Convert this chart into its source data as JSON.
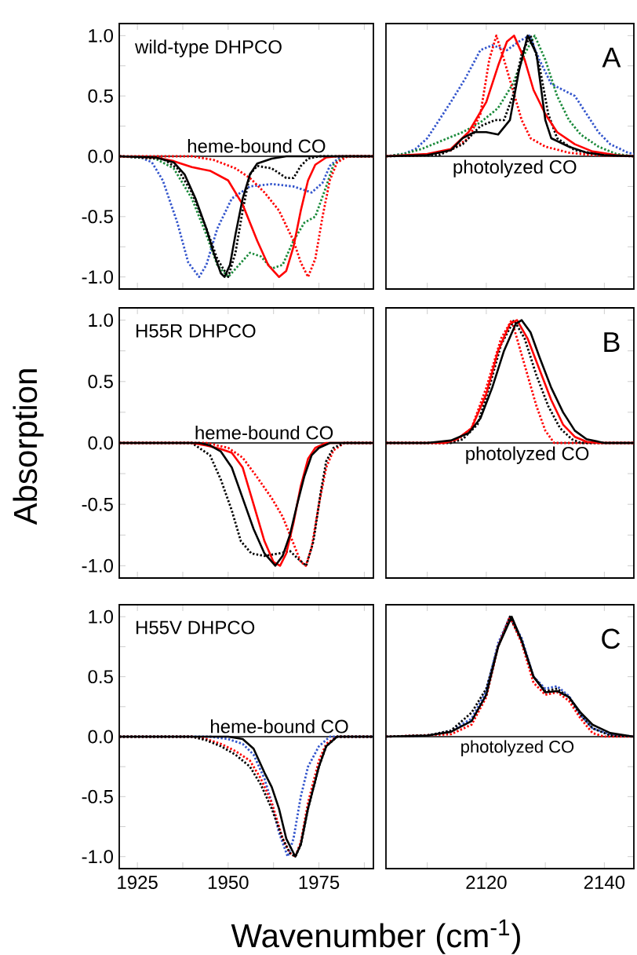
{
  "chart_data": [
    {
      "type": "line",
      "title": "wild-type DHPCO",
      "ylabel": "Absorption",
      "xlim": [
        1920,
        1990
      ],
      "ylim": [
        -1.1,
        1.1
      ],
      "tick_labels": "y",
      "xticks": [
        {
          "value": 1925,
          "label": null
        },
        {
          "value": 1937.5,
          "label": null
        },
        {
          "value": 1950,
          "label": null
        },
        {
          "value": 1962.5,
          "label": null
        },
        {
          "value": 1975,
          "label": null
        },
        {
          "value": 1987.5,
          "label": null
        }
      ],
      "yticks": [
        {
          "value": -1,
          "label": "-1.0"
        },
        {
          "value": -0.75,
          "label": null
        },
        {
          "value": -0.5,
          "label": "-0.5"
        },
        {
          "value": -0.25,
          "label": null
        },
        {
          "value": 0,
          "label": "0.0"
        },
        {
          "value": 0.25,
          "label": null
        },
        {
          "value": 0.5,
          "label": "0.5"
        },
        {
          "value": 0.75,
          "label": null
        },
        {
          "value": 1,
          "label": "1.0"
        }
      ],
      "ref_lines": [
        {
          "axis": "y",
          "value": 0,
          "color": "#000000"
        }
      ],
      "annotations": [
        "heme-bound CO"
      ],
      "series": [
        {
          "color": "#3355cc",
          "line_style": "dotted",
          "x": [
            1920,
            1926,
            1929,
            1932,
            1936,
            1939,
            1942,
            1944,
            1947,
            1951,
            1956,
            1962,
            1968,
            1973,
            1976,
            1978,
            1981,
            1990
          ],
          "values": [
            0,
            -0.01,
            -0.05,
            -0.2,
            -0.55,
            -0.88,
            -1.0,
            -0.9,
            -0.6,
            -0.35,
            -0.25,
            -0.23,
            -0.25,
            -0.3,
            -0.22,
            -0.08,
            0,
            0
          ]
        },
        {
          "color": "#1a8a3a",
          "line_style": "dotted",
          "x": [
            1920,
            1930,
            1935,
            1940,
            1944,
            1947,
            1950,
            1953,
            1956,
            1959,
            1962,
            1965,
            1968,
            1971,
            1974,
            1977,
            1979,
            1982,
            1990
          ],
          "values": [
            0,
            -0.02,
            -0.1,
            -0.35,
            -0.65,
            -0.9,
            -1.0,
            -0.9,
            -0.8,
            -0.83,
            -0.93,
            -0.9,
            -0.7,
            -0.55,
            -0.5,
            -0.25,
            -0.07,
            0,
            0
          ]
        },
        {
          "color": "#ff0000",
          "line_style": "dotted",
          "x": [
            1920,
            1940,
            1946,
            1952,
            1956,
            1960,
            1964,
            1968,
            1970,
            1972,
            1974,
            1976,
            1978,
            1980,
            1983,
            1990
          ],
          "values": [
            0,
            0,
            -0.03,
            -0.1,
            -0.18,
            -0.3,
            -0.45,
            -0.7,
            -0.88,
            -1.0,
            -0.85,
            -0.5,
            -0.2,
            -0.05,
            0,
            0
          ]
        },
        {
          "color": "#000000",
          "line_style": "dotted",
          "x": [
            1920,
            1932,
            1936,
            1940,
            1944,
            1947,
            1950,
            1952,
            1954,
            1956,
            1958,
            1962,
            1966,
            1968,
            1970,
            1972,
            1975,
            1990
          ],
          "values": [
            0,
            -0.02,
            -0.1,
            -0.3,
            -0.6,
            -0.85,
            -1.0,
            -0.8,
            -0.45,
            -0.15,
            -0.08,
            -0.1,
            -0.18,
            -0.18,
            -0.08,
            -0.02,
            0,
            0
          ]
        },
        {
          "color": "#ff0000",
          "line_style": "solid",
          "x": [
            1920,
            1930,
            1935,
            1940,
            1945,
            1950,
            1954,
            1958,
            1961,
            1964,
            1966,
            1968,
            1970,
            1972,
            1974,
            1977,
            1980,
            1990
          ],
          "values": [
            0,
            -0.01,
            -0.04,
            -0.09,
            -0.12,
            -0.2,
            -0.4,
            -0.7,
            -0.9,
            -1.0,
            -0.95,
            -0.75,
            -0.45,
            -0.2,
            -0.07,
            -0.01,
            0,
            0
          ]
        },
        {
          "color": "#000000",
          "line_style": "solid",
          "x": [
            1920,
            1930,
            1935,
            1938,
            1941,
            1944,
            1946,
            1948,
            1949,
            1950.5,
            1952,
            1954,
            1956,
            1958,
            1962,
            1966,
            1990
          ],
          "values": [
            0,
            -0.01,
            -0.05,
            -0.15,
            -0.35,
            -0.6,
            -0.8,
            -0.97,
            -1.0,
            -0.9,
            -0.65,
            -0.35,
            -0.15,
            -0.06,
            -0.02,
            0,
            0
          ]
        }
      ]
    },
    {
      "type": "line",
      "title": "A",
      "xlim": [
        2103,
        2145
      ],
      "ylim": [
        -1.1,
        1.1
      ],
      "tick_labels": false,
      "xticks": [
        {
          "value": 2110,
          "label": null
        },
        {
          "value": 2120,
          "label": null
        },
        {
          "value": 2130,
          "label": null
        },
        {
          "value": 2140,
          "label": null
        }
      ],
      "yticks": [
        {
          "value": -1,
          "label": null
        },
        {
          "value": -0.75,
          "label": null
        },
        {
          "value": -0.5,
          "label": null
        },
        {
          "value": -0.25,
          "label": null
        },
        {
          "value": 0,
          "label": null
        },
        {
          "value": 0.25,
          "label": null
        },
        {
          "value": 0.5,
          "label": null
        },
        {
          "value": 0.75,
          "label": null
        },
        {
          "value": 1,
          "label": null
        }
      ],
      "ref_lines": [
        {
          "axis": "y",
          "value": 0,
          "color": "#000000"
        }
      ],
      "annotations": [
        "photolyzed CO"
      ],
      "series": [
        {
          "color": "#3355cc",
          "line_style": "dotted",
          "x": [
            2103,
            2106,
            2108,
            2110,
            2112,
            2114,
            2116.5,
            2119,
            2121,
            2123.5,
            2125.5,
            2127.3,
            2129,
            2131,
            2133,
            2135,
            2137,
            2139,
            2141,
            2144,
            2145
          ],
          "values": [
            0,
            0.02,
            0.06,
            0.15,
            0.3,
            0.45,
            0.65,
            0.88,
            0.92,
            0.88,
            0.95,
            1.0,
            0.8,
            0.6,
            0.55,
            0.5,
            0.35,
            0.2,
            0.1,
            0.03,
            0.02
          ]
        },
        {
          "color": "#1a8a3a",
          "line_style": "dotted",
          "x": [
            2103,
            2106,
            2109,
            2112,
            2116,
            2119,
            2122,
            2124.5,
            2126.5,
            2128.2,
            2130,
            2132,
            2134,
            2136,
            2139,
            2142,
            2145
          ],
          "values": [
            0,
            0.02,
            0.06,
            0.12,
            0.2,
            0.28,
            0.4,
            0.6,
            0.85,
            1.0,
            0.8,
            0.5,
            0.3,
            0.18,
            0.08,
            0.02,
            0
          ]
        },
        {
          "color": "#ff0000",
          "line_style": "dotted",
          "x": [
            2103,
            2110,
            2114,
            2117,
            2119,
            2120.5,
            2121.7,
            2123,
            2124.5,
            2126,
            2127.5,
            2130,
            2134,
            2138,
            2145
          ],
          "values": [
            0,
            0.01,
            0.05,
            0.15,
            0.35,
            0.8,
            1.0,
            0.8,
            0.55,
            0.3,
            0.15,
            0.08,
            0.03,
            0.01,
            0
          ]
        },
        {
          "color": "#000000",
          "line_style": "dotted",
          "x": [
            2103,
            2112,
            2116,
            2119,
            2121.5,
            2123,
            2124.5,
            2126,
            2127.5,
            2129,
            2130.5,
            2132,
            2135,
            2140,
            2145
          ],
          "values": [
            0,
            0.01,
            0.1,
            0.25,
            0.3,
            0.3,
            0.5,
            0.85,
            1.0,
            0.75,
            0.35,
            0.15,
            0.05,
            0.01,
            0
          ]
        },
        {
          "color": "#ff0000",
          "line_style": "solid",
          "x": [
            2103,
            2110,
            2114,
            2117,
            2120,
            2122,
            2123.5,
            2124.7,
            2126.5,
            2128,
            2130,
            2132,
            2135,
            2138,
            2142,
            2145
          ],
          "values": [
            0,
            0.02,
            0.06,
            0.2,
            0.45,
            0.75,
            0.95,
            1.0,
            0.8,
            0.55,
            0.35,
            0.2,
            0.1,
            0.04,
            0.01,
            0
          ]
        },
        {
          "color": "#000000",
          "line_style": "solid",
          "x": [
            2103,
            2110,
            2114,
            2116,
            2118,
            2120,
            2122,
            2124,
            2125.5,
            2127,
            2128.5,
            2130,
            2131,
            2134,
            2137,
            2140,
            2145
          ],
          "values": [
            0,
            0.01,
            0.05,
            0.15,
            0.2,
            0.2,
            0.18,
            0.3,
            0.7,
            1.0,
            0.85,
            0.3,
            0.15,
            0.08,
            0.03,
            0.01,
            0
          ]
        }
      ]
    },
    {
      "type": "line",
      "title": "H55R DHPCO",
      "xlim": [
        1920,
        1990
      ],
      "ylim": [
        -1.1,
        1.1
      ],
      "tick_labels": "y",
      "xticks": [
        {
          "value": 1925,
          "label": null
        },
        {
          "value": 1937.5,
          "label": null
        },
        {
          "value": 1950,
          "label": null
        },
        {
          "value": 1962.5,
          "label": null
        },
        {
          "value": 1975,
          "label": null
        },
        {
          "value": 1987.5,
          "label": null
        }
      ],
      "yticks": [
        {
          "value": -1,
          "label": "-1.0"
        },
        {
          "value": -0.75,
          "label": null
        },
        {
          "value": -0.5,
          "label": "-0.5"
        },
        {
          "value": -0.25,
          "label": null
        },
        {
          "value": 0,
          "label": "0.0"
        },
        {
          "value": 0.25,
          "label": null
        },
        {
          "value": 0.5,
          "label": "0.5"
        },
        {
          "value": 0.75,
          "label": null
        },
        {
          "value": 1,
          "label": "1.0"
        }
      ],
      "ref_lines": [
        {
          "axis": "y",
          "value": 0,
          "color": "#000000"
        }
      ],
      "annotations": [
        "heme-bound CO"
      ],
      "series": [
        {
          "color": "#ff0000",
          "line_style": "dotted",
          "x": [
            1920,
            1944,
            1950,
            1954,
            1958,
            1962,
            1965,
            1968,
            1970,
            1971.4,
            1973,
            1975,
            1977,
            1979,
            1982,
            1990
          ],
          "values": [
            0,
            0,
            -0.04,
            -0.12,
            -0.28,
            -0.45,
            -0.6,
            -0.82,
            -0.97,
            -1.0,
            -0.85,
            -0.5,
            -0.2,
            -0.06,
            0,
            0
          ]
        },
        {
          "color": "#000000",
          "line_style": "dotted",
          "x": [
            1920,
            1940,
            1945,
            1948,
            1951,
            1953.5,
            1956.4,
            1960,
            1964,
            1967,
            1969.5,
            1971.5,
            1973.5,
            1975.5,
            1977,
            1979,
            1982,
            1990
          ],
          "values": [
            0,
            0,
            -0.1,
            -0.3,
            -0.55,
            -0.8,
            -0.9,
            -0.92,
            -0.9,
            -0.88,
            -0.95,
            -1.0,
            -0.8,
            -0.4,
            -0.15,
            -0.04,
            0,
            0
          ]
        },
        {
          "color": "#ff0000",
          "line_style": "solid",
          "x": [
            1920,
            1940,
            1944,
            1948,
            1951,
            1954,
            1957,
            1960,
            1962.5,
            1964.3,
            1966,
            1968,
            1970,
            1972,
            1974,
            1977,
            1990
          ],
          "values": [
            0,
            0,
            -0.02,
            -0.05,
            -0.08,
            -0.2,
            -0.5,
            -0.8,
            -0.97,
            -1.0,
            -0.9,
            -0.65,
            -0.35,
            -0.13,
            -0.04,
            0,
            0
          ]
        },
        {
          "color": "#000000",
          "line_style": "solid",
          "x": [
            1920,
            1942,
            1945,
            1948,
            1951,
            1954,
            1957,
            1960,
            1963,
            1965,
            1967,
            1969,
            1971,
            1973,
            1975,
            1978,
            1990
          ],
          "values": [
            0,
            0,
            -0.02,
            -0.07,
            -0.2,
            -0.45,
            -0.7,
            -0.9,
            -1.0,
            -0.92,
            -0.75,
            -0.5,
            -0.27,
            -0.1,
            -0.04,
            0,
            0
          ]
        }
      ]
    },
    {
      "type": "line",
      "title": "B",
      "xlim": [
        2103,
        2145
      ],
      "ylim": [
        -1.1,
        1.1
      ],
      "tick_labels": false,
      "xticks": [
        {
          "value": 2110,
          "label": null
        },
        {
          "value": 2120,
          "label": null
        },
        {
          "value": 2130,
          "label": null
        },
        {
          "value": 2140,
          "label": null
        }
      ],
      "yticks": [
        {
          "value": -1,
          "label": null
        },
        {
          "value": -0.75,
          "label": null
        },
        {
          "value": -0.5,
          "label": null
        },
        {
          "value": -0.25,
          "label": null
        },
        {
          "value": 0,
          "label": null
        },
        {
          "value": 0.25,
          "label": null
        },
        {
          "value": 0.5,
          "label": null
        },
        {
          "value": 0.75,
          "label": null
        },
        {
          "value": 1,
          "label": null
        }
      ],
      "ref_lines": [
        {
          "axis": "y",
          "value": 0,
          "color": "#000000"
        }
      ],
      "annotations": [
        "photolyzed CO"
      ],
      "series": [
        {
          "color": "#ff0000",
          "line_style": "dotted",
          "x": [
            2103,
            2113,
            2115,
            2117.5,
            2120,
            2122.5,
            2124.3,
            2125.5,
            2127,
            2128.5,
            2130,
            2131.5,
            2145
          ],
          "values": [
            0,
            0,
            0.02,
            0.12,
            0.45,
            0.85,
            1.0,
            0.8,
            0.55,
            0.3,
            0.1,
            0,
            0
          ]
        },
        {
          "color": "#000000",
          "line_style": "dotted",
          "x": [
            2103,
            2114,
            2116,
            2118.5,
            2120.5,
            2122.5,
            2124.7,
            2126.5,
            2128.5,
            2130.5,
            2132.5,
            2134.5,
            2136,
            2145
          ],
          "values": [
            0,
            0,
            0.03,
            0.15,
            0.45,
            0.8,
            1.0,
            0.85,
            0.55,
            0.3,
            0.12,
            0.03,
            0,
            0
          ]
        },
        {
          "color": "#ff0000",
          "line_style": "solid",
          "x": [
            2103,
            2113,
            2115,
            2117.5,
            2120,
            2122,
            2124,
            2125.2,
            2127,
            2129,
            2131,
            2133,
            2135,
            2137,
            2139,
            2145
          ],
          "values": [
            0,
            0,
            0.03,
            0.12,
            0.4,
            0.75,
            0.97,
            1.0,
            0.85,
            0.6,
            0.35,
            0.15,
            0.05,
            0.01,
            0,
            0
          ]
        },
        {
          "color": "#000000",
          "line_style": "solid",
          "x": [
            2103,
            2110,
            2114,
            2117,
            2119,
            2121,
            2123,
            2125,
            2126,
            2127.5,
            2129,
            2131,
            2133,
            2135,
            2137,
            2140,
            2145
          ],
          "values": [
            0,
            0,
            0.02,
            0.08,
            0.2,
            0.45,
            0.75,
            0.97,
            1.0,
            0.9,
            0.7,
            0.45,
            0.25,
            0.1,
            0.03,
            0,
            0
          ]
        }
      ]
    },
    {
      "type": "line",
      "title": "H55V DHPCO",
      "xlabel": "Wavenumber (cm$^{-1}$)",
      "xlim": [
        1920,
        1990
      ],
      "ylim": [
        -1.1,
        1.1
      ],
      "xticks": [
        1925,
        {
          "value": 1937.5,
          "label": null
        },
        1950,
        {
          "value": 1962.5,
          "label": null
        },
        1975,
        {
          "value": 1987.5,
          "label": null
        }
      ],
      "yticks": [
        {
          "value": -1,
          "label": "-1.0"
        },
        {
          "value": -0.75,
          "label": null
        },
        {
          "value": -0.5,
          "label": "-0.5"
        },
        {
          "value": -0.25,
          "label": null
        },
        {
          "value": 0,
          "label": "0.0"
        },
        {
          "value": 0.25,
          "label": null
        },
        {
          "value": 0.5,
          "label": "0.5"
        },
        {
          "value": 0.75,
          "label": null
        },
        {
          "value": 1,
          "label": "1.0"
        }
      ],
      "ref_lines": [
        {
          "axis": "y",
          "value": 0,
          "color": "#000000"
        }
      ],
      "annotations": [
        "heme-bound CO"
      ],
      "series": [
        {
          "color": "#3355cc",
          "line_style": "dotted",
          "x": [
            1920,
            1945,
            1950,
            1954,
            1957,
            1960,
            1962,
            1964,
            1966.4,
            1968,
            1970,
            1972,
            1975,
            1978,
            1990
          ],
          "values": [
            0,
            0,
            -0.02,
            -0.06,
            -0.15,
            -0.35,
            -0.55,
            -0.8,
            -1.0,
            -0.85,
            -0.5,
            -0.25,
            -0.08,
            0,
            0
          ]
        },
        {
          "color": "#ff0000",
          "line_style": "dotted",
          "x": [
            1920,
            1940,
            1944,
            1948,
            1952,
            1956,
            1959,
            1962,
            1965,
            1967,
            1968.5,
            1970,
            1972,
            1975,
            1977,
            1980,
            1990
          ],
          "values": [
            0,
            0,
            -0.02,
            -0.06,
            -0.12,
            -0.2,
            -0.35,
            -0.55,
            -0.85,
            -0.97,
            -1.0,
            -0.88,
            -0.55,
            -0.2,
            -0.06,
            0,
            0
          ]
        },
        {
          "color": "#000000",
          "line_style": "dotted",
          "x": [
            1920,
            1940,
            1944,
            1948,
            1952,
            1956,
            1959,
            1962,
            1965,
            1967,
            1968.5,
            1970,
            1972,
            1975,
            1977,
            1980,
            1990
          ],
          "values": [
            0,
            0,
            -0.03,
            -0.08,
            -0.15,
            -0.25,
            -0.4,
            -0.6,
            -0.85,
            -0.97,
            -1.0,
            -0.9,
            -0.6,
            -0.25,
            -0.08,
            0,
            0
          ]
        },
        {
          "color": "#000000",
          "line_style": "solid",
          "x": [
            1920,
            1950,
            1954,
            1957,
            1960,
            1962,
            1964,
            1966,
            1968.5,
            1970,
            1972,
            1975,
            1977,
            1980,
            1990
          ],
          "values": [
            0,
            0,
            -0.02,
            -0.1,
            -0.3,
            -0.42,
            -0.6,
            -0.85,
            -1.0,
            -0.9,
            -0.6,
            -0.25,
            -0.08,
            0,
            0
          ]
        }
      ]
    },
    {
      "type": "line",
      "title": "C",
      "xlim": [
        2103,
        2145
      ],
      "ylim": [
        -1.1,
        1.1
      ],
      "tick_labels": "x",
      "xticks": [
        {
          "value": 2110,
          "label": null
        },
        2120,
        {
          "value": 2130,
          "label": null
        },
        2140
      ],
      "yticks": [
        {
          "value": -1,
          "label": null
        },
        {
          "value": -0.75,
          "label": null
        },
        {
          "value": -0.5,
          "label": null
        },
        {
          "value": -0.25,
          "label": null
        },
        {
          "value": 0,
          "label": null
        },
        {
          "value": 0.25,
          "label": null
        },
        {
          "value": 0.5,
          "label": null
        },
        {
          "value": 0.75,
          "label": null
        },
        {
          "value": 1,
          "label": null
        }
      ],
      "ref_lines": [
        {
          "axis": "y",
          "value": 0,
          "color": "#000000"
        }
      ],
      "annotations": [
        "photolyzed CO"
      ],
      "series": [
        {
          "color": "#3355cc",
          "line_style": "dotted",
          "x": [
            2103,
            2110,
            2114,
            2117.5,
            2120,
            2122,
            2124,
            2126,
            2128,
            2130,
            2132,
            2134,
            2136,
            2138,
            2141,
            2145
          ],
          "values": [
            0,
            0.01,
            0.05,
            0.15,
            0.38,
            0.78,
            1.0,
            0.82,
            0.5,
            0.4,
            0.42,
            0.34,
            0.18,
            0.07,
            0.02,
            0
          ]
        },
        {
          "color": "#ff0000",
          "line_style": "dotted",
          "x": [
            2103,
            2114,
            2117.5,
            2120,
            2122,
            2124,
            2126,
            2128,
            2130,
            2132,
            2134,
            2136,
            2138,
            2140,
            2145
          ],
          "values": [
            0,
            0.02,
            0.1,
            0.33,
            0.75,
            1.0,
            0.78,
            0.45,
            0.35,
            0.37,
            0.3,
            0.15,
            0.03,
            0,
            0
          ]
        },
        {
          "color": "#000000",
          "line_style": "dotted",
          "x": [
            2103,
            2110,
            2114,
            2117.5,
            2120,
            2122,
            2124,
            2126,
            2128,
            2130,
            2132,
            2134,
            2136,
            2138,
            2141,
            2145
          ],
          "values": [
            0,
            0.01,
            0.05,
            0.2,
            0.4,
            0.75,
            1.0,
            0.8,
            0.5,
            0.38,
            0.4,
            0.33,
            0.18,
            0.07,
            0.01,
            0
          ]
        },
        {
          "color": "#000000",
          "line_style": "solid",
          "x": [
            2103,
            2110,
            2114,
            2117.5,
            2120,
            2122,
            2124.3,
            2126,
            2128,
            2130,
            2132,
            2134,
            2136,
            2138,
            2141,
            2145
          ],
          "values": [
            0,
            0.01,
            0.04,
            0.13,
            0.35,
            0.75,
            1.0,
            0.8,
            0.5,
            0.37,
            0.38,
            0.33,
            0.2,
            0.1,
            0.03,
            0
          ]
        }
      ]
    }
  ]
}
